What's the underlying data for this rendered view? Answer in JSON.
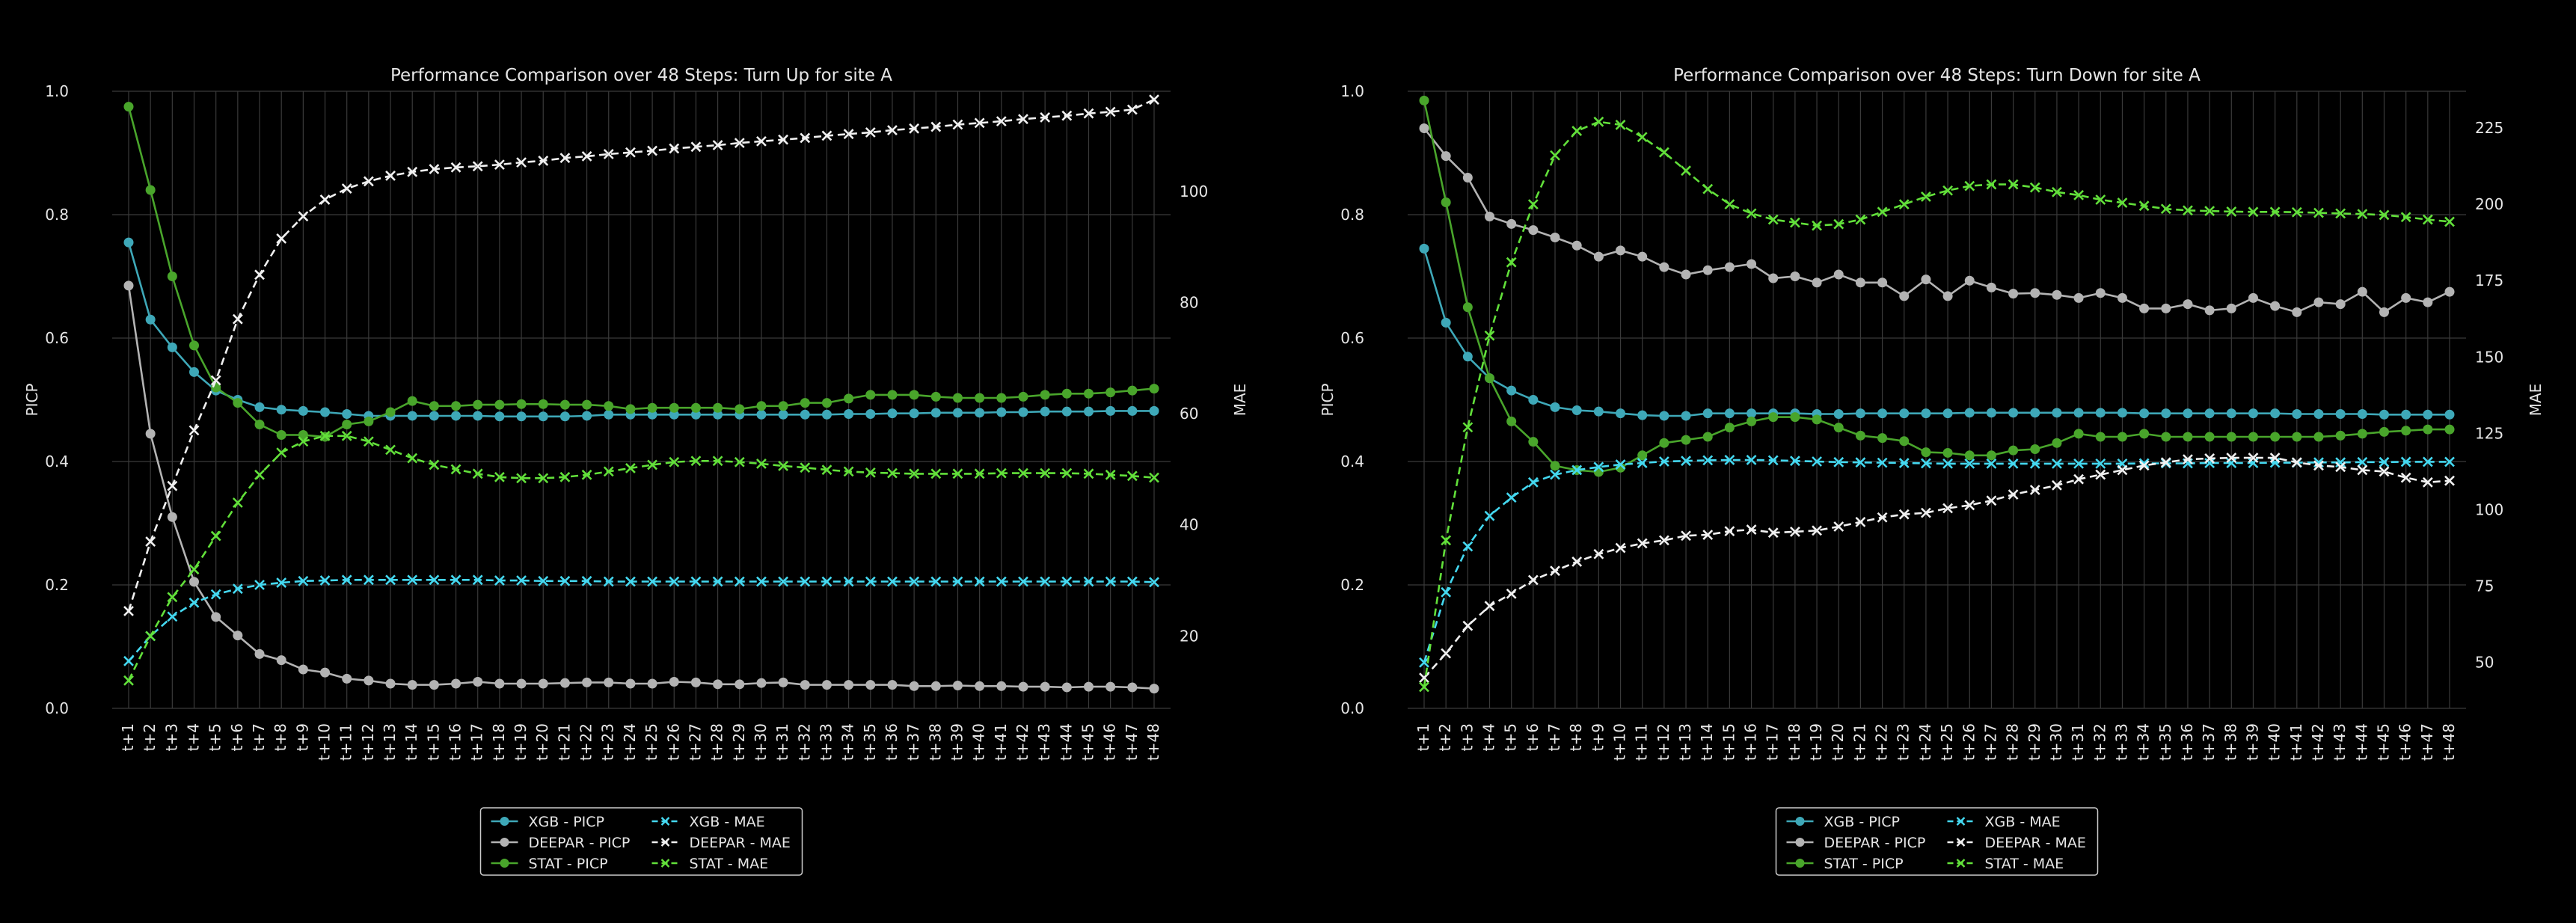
{
  "colors": {
    "background": "#000000",
    "text": "#e6e6e6",
    "grid": "#3a3a3a",
    "xgb": "#3ea8b8",
    "xgb_mae": "#44d8f0",
    "deepar": "#b3b3b3",
    "deepar_mae": "#f0f0f0",
    "stat": "#49a52b",
    "stat_mae": "#62e03a",
    "legend_border": "#cccccc"
  },
  "chart_data": [
    {
      "type": "line",
      "title": "Performance Comparison over  48 Steps: Turn Up for site A",
      "ylabel": "PICP",
      "y2label": "MAE",
      "ylim": [
        0.0,
        1.0
      ],
      "y2lim": [
        7,
        118
      ],
      "yticks": [
        "0.0",
        "0.2",
        "0.4",
        "0.6",
        "0.8",
        "1.0"
      ],
      "y2ticks": [
        "20",
        "40",
        "60",
        "80",
        "100"
      ],
      "grid": true,
      "legend_position": "bottom-center",
      "x": [
        "t+1",
        "t+2",
        "t+3",
        "t+4",
        "t+5",
        "t+6",
        "t+7",
        "t+8",
        "t+9",
        "t+10",
        "t+11",
        "t+12",
        "t+13",
        "t+14",
        "t+15",
        "t+16",
        "t+17",
        "t+18",
        "t+19",
        "t+20",
        "t+21",
        "t+22",
        "t+23",
        "t+24",
        "t+25",
        "t+26",
        "t+27",
        "t+28",
        "t+29",
        "t+30",
        "t+31",
        "t+32",
        "t+33",
        "t+34",
        "t+35",
        "t+36",
        "t+37",
        "t+38",
        "t+39",
        "t+40",
        "t+41",
        "t+42",
        "t+43",
        "t+44",
        "t+45",
        "t+46",
        "t+47",
        "t+48"
      ],
      "series": [
        {
          "name": "XGB - PICP",
          "axis": "left",
          "marker": "o",
          "style": "solid",
          "color_key": "xgb",
          "values": [
            0.755,
            0.63,
            0.585,
            0.545,
            0.515,
            0.5,
            0.488,
            0.484,
            0.482,
            0.48,
            0.477,
            0.474,
            0.474,
            0.474,
            0.474,
            0.474,
            0.474,
            0.473,
            0.473,
            0.473,
            0.473,
            0.474,
            0.476,
            0.476,
            0.476,
            0.476,
            0.476,
            0.476,
            0.476,
            0.476,
            0.476,
            0.476,
            0.476,
            0.477,
            0.477,
            0.478,
            0.478,
            0.479,
            0.479,
            0.479,
            0.48,
            0.48,
            0.481,
            0.481,
            0.481,
            0.482,
            0.482,
            0.482
          ]
        },
        {
          "name": "DEEPAR - PICP",
          "axis": "left",
          "marker": "o",
          "style": "solid",
          "color_key": "deepar",
          "values": [
            0.685,
            0.445,
            0.31,
            0.205,
            0.148,
            0.118,
            0.088,
            0.078,
            0.063,
            0.058,
            0.048,
            0.045,
            0.04,
            0.038,
            0.038,
            0.04,
            0.043,
            0.04,
            0.04,
            0.04,
            0.041,
            0.042,
            0.042,
            0.04,
            0.04,
            0.043,
            0.042,
            0.039,
            0.039,
            0.041,
            0.042,
            0.038,
            0.038,
            0.038,
            0.038,
            0.038,
            0.036,
            0.036,
            0.037,
            0.036,
            0.036,
            0.035,
            0.035,
            0.034,
            0.035,
            0.035,
            0.034,
            0.032
          ]
        },
        {
          "name": "STAT - PICP",
          "axis": "left",
          "marker": "o",
          "style": "solid",
          "color_key": "stat",
          "values": [
            0.975,
            0.84,
            0.7,
            0.588,
            0.52,
            0.495,
            0.46,
            0.443,
            0.443,
            0.44,
            0.46,
            0.465,
            0.48,
            0.498,
            0.49,
            0.49,
            0.492,
            0.492,
            0.493,
            0.493,
            0.492,
            0.492,
            0.49,
            0.485,
            0.487,
            0.487,
            0.487,
            0.487,
            0.485,
            0.49,
            0.49,
            0.495,
            0.495,
            0.502,
            0.508,
            0.508,
            0.508,
            0.505,
            0.503,
            0.503,
            0.503,
            0.505,
            0.508,
            0.51,
            0.51,
            0.512,
            0.515,
            0.518
          ]
        },
        {
          "name": "XGB - MAE",
          "axis": "right",
          "marker": "x",
          "style": "dashed",
          "color_key": "xgb_mae",
          "values": [
            15.5,
            20,
            23.5,
            26,
            27.5,
            28.5,
            29.2,
            29.6,
            29.9,
            30,
            30.1,
            30.1,
            30.1,
            30.1,
            30.1,
            30.1,
            30.1,
            30,
            30,
            29.9,
            29.9,
            29.9,
            29.8,
            29.8,
            29.8,
            29.8,
            29.8,
            29.8,
            29.8,
            29.8,
            29.8,
            29.8,
            29.8,
            29.8,
            29.8,
            29.8,
            29.8,
            29.8,
            29.8,
            29.8,
            29.8,
            29.8,
            29.8,
            29.8,
            29.8,
            29.8,
            29.8,
            29.7
          ]
        },
        {
          "name": "DEEPAR - MAE",
          "axis": "right",
          "marker": "x",
          "style": "dashed",
          "color_key": "deepar_mae",
          "values": [
            24.5,
            37,
            47,
            57,
            66,
            77,
            85,
            91.5,
            95.5,
            98.5,
            100.5,
            101.8,
            102.8,
            103.5,
            104,
            104.3,
            104.5,
            104.8,
            105.2,
            105.5,
            106,
            106.3,
            106.7,
            107,
            107.3,
            107.7,
            108,
            108.3,
            108.7,
            109,
            109.3,
            109.6,
            110,
            110.3,
            110.6,
            111,
            111.3,
            111.6,
            112,
            112.3,
            112.6,
            113,
            113.3,
            113.6,
            114,
            114.3,
            114.7,
            116.5
          ]
        },
        {
          "name": "STAT - MAE",
          "axis": "right",
          "marker": "x",
          "style": "dashed",
          "color_key": "stat_mae",
          "values": [
            12,
            20,
            27,
            32,
            38,
            44,
            49,
            53,
            55,
            56,
            56,
            55,
            53.5,
            52,
            50.8,
            50,
            49.2,
            48.6,
            48.4,
            48.4,
            48.6,
            49,
            49.6,
            50.2,
            50.8,
            51.3,
            51.5,
            51.5,
            51.3,
            51,
            50.6,
            50.3,
            49.9,
            49.6,
            49.4,
            49.3,
            49.2,
            49.2,
            49.2,
            49.2,
            49.3,
            49.3,
            49.3,
            49.3,
            49.2,
            49,
            48.8,
            48.5
          ]
        }
      ]
    },
    {
      "type": "line",
      "title": "Performance Comparison over  48 Steps: Turn Down for site A",
      "ylabel": "PICP",
      "y2label": "MAE",
      "ylim": [
        0.0,
        1.0
      ],
      "y2lim": [
        35,
        237
      ],
      "yticks": [
        "0.0",
        "0.2",
        "0.4",
        "0.6",
        "0.8",
        "1.0"
      ],
      "y2ticks": [
        "50",
        "75",
        "100",
        "125",
        "150",
        "175",
        "200",
        "225"
      ],
      "grid": true,
      "legend_position": "bottom-center",
      "x": [
        "t+1",
        "t+2",
        "t+3",
        "t+4",
        "t+5",
        "t+6",
        "t+7",
        "t+8",
        "t+9",
        "t+10",
        "t+11",
        "t+12",
        "t+13",
        "t+14",
        "t+15",
        "t+16",
        "t+17",
        "t+18",
        "t+19",
        "t+20",
        "t+21",
        "t+22",
        "t+23",
        "t+24",
        "t+25",
        "t+26",
        "t+27",
        "t+28",
        "t+29",
        "t+30",
        "t+31",
        "t+32",
        "t+33",
        "t+34",
        "t+35",
        "t+36",
        "t+37",
        "t+38",
        "t+39",
        "t+40",
        "t+41",
        "t+42",
        "t+43",
        "t+44",
        "t+45",
        "t+46",
        "t+47",
        "t+48"
      ],
      "series": [
        {
          "name": "XGB - PICP",
          "axis": "left",
          "marker": "o",
          "style": "solid",
          "color_key": "xgb",
          "values": [
            0.745,
            0.625,
            0.57,
            0.535,
            0.515,
            0.5,
            0.488,
            0.483,
            0.481,
            0.478,
            0.475,
            0.474,
            0.474,
            0.478,
            0.478,
            0.478,
            0.478,
            0.478,
            0.477,
            0.477,
            0.478,
            0.478,
            0.478,
            0.478,
            0.478,
            0.479,
            0.479,
            0.479,
            0.479,
            0.479,
            0.479,
            0.479,
            0.479,
            0.478,
            0.478,
            0.478,
            0.478,
            0.478,
            0.478,
            0.478,
            0.477,
            0.477,
            0.477,
            0.477,
            0.476,
            0.476,
            0.476,
            0.476
          ]
        },
        {
          "name": "DEEPAR - PICP",
          "axis": "left",
          "marker": "o",
          "style": "solid",
          "color_key": "deepar",
          "values": [
            0.94,
            0.895,
            0.86,
            0.797,
            0.785,
            0.775,
            0.763,
            0.75,
            0.732,
            0.742,
            0.732,
            0.715,
            0.703,
            0.71,
            0.715,
            0.72,
            0.697,
            0.7,
            0.69,
            0.703,
            0.69,
            0.69,
            0.668,
            0.695,
            0.668,
            0.693,
            0.682,
            0.672,
            0.673,
            0.67,
            0.665,
            0.673,
            0.665,
            0.648,
            0.648,
            0.655,
            0.645,
            0.648,
            0.665,
            0.652,
            0.642,
            0.658,
            0.655,
            0.675,
            0.642,
            0.665,
            0.658,
            0.675
          ]
        },
        {
          "name": "STAT - PICP",
          "axis": "left",
          "marker": "o",
          "style": "solid",
          "color_key": "stat",
          "values": [
            0.985,
            0.82,
            0.65,
            0.535,
            0.465,
            0.432,
            0.393,
            0.386,
            0.383,
            0.39,
            0.41,
            0.43,
            0.435,
            0.44,
            0.455,
            0.465,
            0.472,
            0.472,
            0.468,
            0.455,
            0.442,
            0.438,
            0.433,
            0.415,
            0.414,
            0.41,
            0.41,
            0.418,
            0.42,
            0.43,
            0.445,
            0.44,
            0.44,
            0.445,
            0.44,
            0.44,
            0.44,
            0.44,
            0.44,
            0.44,
            0.44,
            0.44,
            0.442,
            0.445,
            0.448,
            0.45,
            0.452,
            0.452
          ]
        },
        {
          "name": "XGB - MAE",
          "axis": "right",
          "marker": "x",
          "style": "dashed",
          "color_key": "xgb_mae",
          "values": [
            50,
            73,
            88,
            98,
            104,
            109,
            111.5,
            113,
            114,
            114.8,
            115.3,
            115.8,
            116,
            116.2,
            116.3,
            116.3,
            116.2,
            116,
            115.8,
            115.6,
            115.5,
            115.4,
            115.3,
            115.2,
            115.1,
            115.1,
            115.1,
            115.1,
            115.1,
            115.1,
            115.1,
            115.1,
            115.1,
            115.2,
            115.2,
            115.2,
            115.3,
            115.3,
            115.3,
            115.4,
            115.4,
            115.5,
            115.5,
            115.6,
            115.6,
            115.7,
            115.7,
            115.7
          ]
        },
        {
          "name": "DEEPAR - MAE",
          "axis": "right",
          "marker": "x",
          "style": "dashed",
          "color_key": "deepar_mae",
          "values": [
            45,
            53,
            62,
            68.5,
            72.5,
            77,
            80,
            83,
            85.5,
            87.5,
            89,
            90,
            91.5,
            91.8,
            93,
            93.5,
            92.5,
            92.8,
            93.2,
            94.5,
            96,
            97.5,
            98.5,
            99,
            100.5,
            101.5,
            103,
            105,
            106.5,
            108,
            110,
            111.5,
            113,
            114.5,
            115.5,
            116.5,
            116.8,
            117,
            117,
            117,
            115.5,
            114.5,
            114,
            113,
            112.5,
            110.5,
            109,
            109.5
          ]
        },
        {
          "name": "STAT - MAE",
          "axis": "right",
          "marker": "x",
          "style": "dashed",
          "color_key": "stat_mae",
          "values": [
            42,
            90,
            127,
            157,
            181,
            200,
            216,
            224,
            227,
            226,
            222,
            217,
            211,
            205,
            200,
            197,
            195,
            194,
            193,
            193.5,
            195,
            197.5,
            200,
            202.5,
            204.5,
            206,
            206.5,
            206.5,
            205.5,
            204,
            203,
            201.5,
            200.5,
            199.5,
            198.5,
            198,
            197.8,
            197.6,
            197.5,
            197.5,
            197.4,
            197.2,
            197,
            196.8,
            196.5,
            195.8,
            195,
            194.3
          ]
        }
      ]
    }
  ]
}
